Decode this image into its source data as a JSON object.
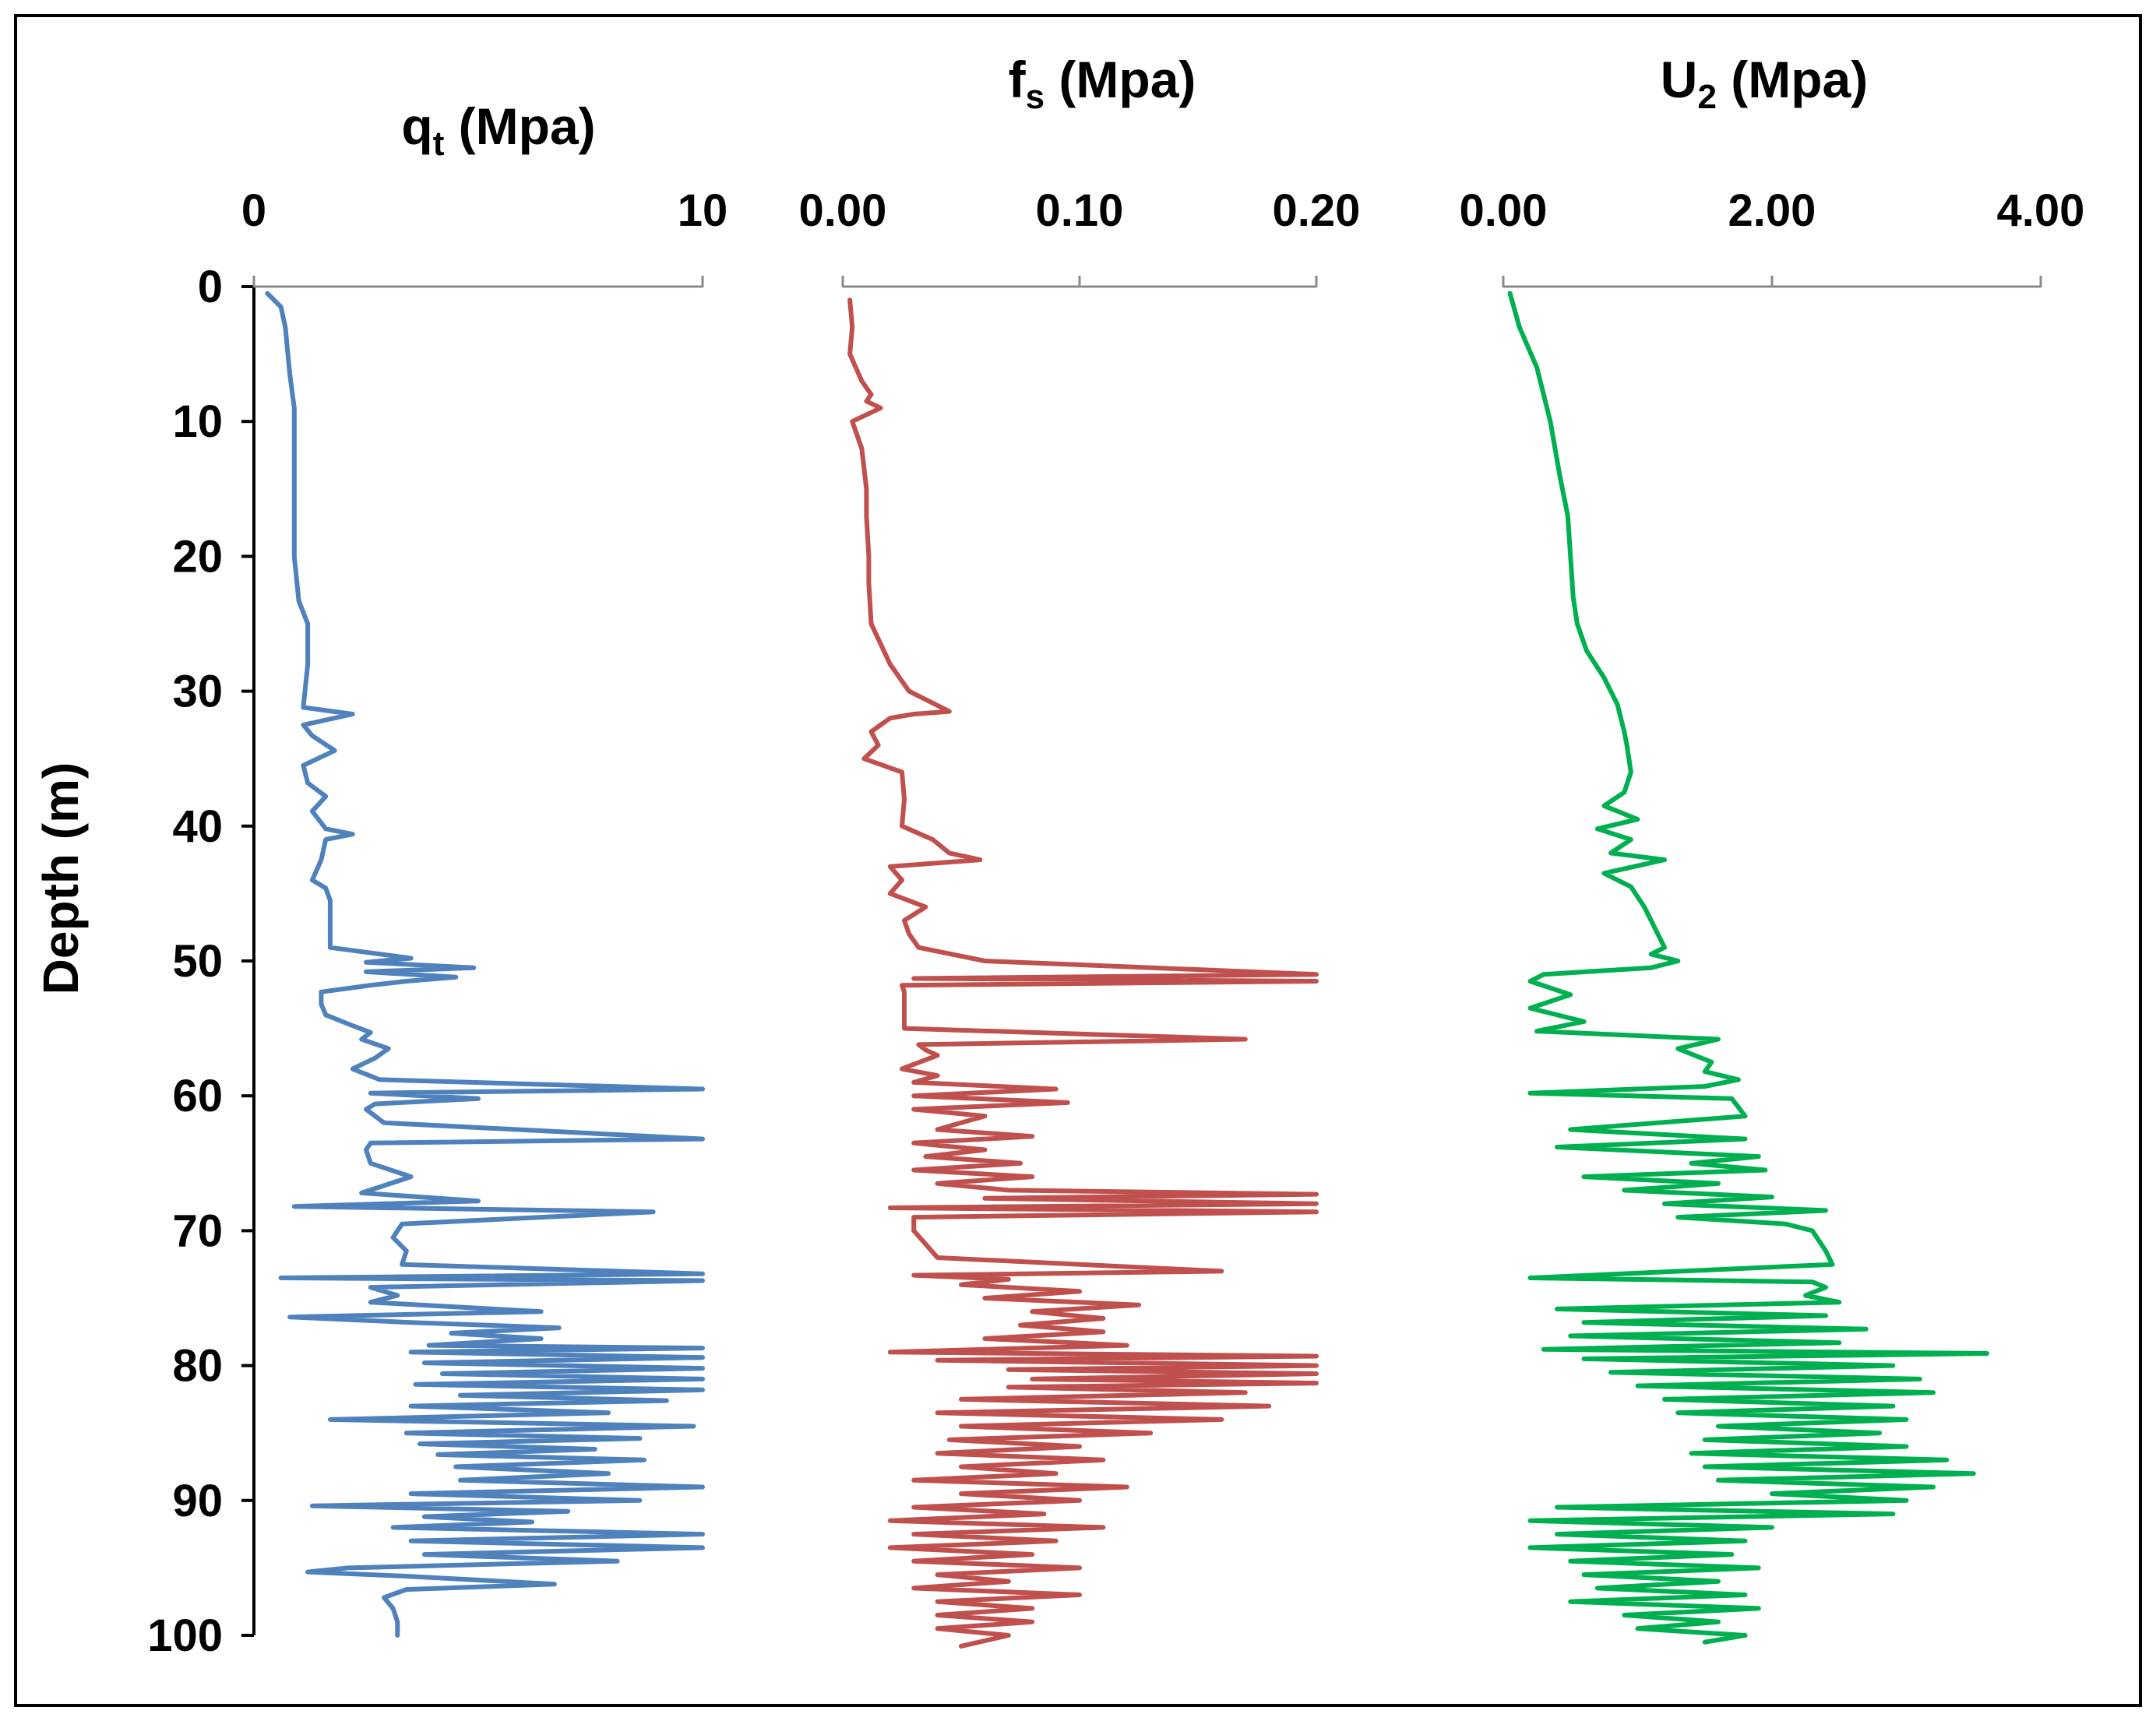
{
  "chart_data": {
    "type": "line",
    "ylabel": "Depth (m)",
    "ylim": [
      0,
      100
    ],
    "y_inverted": true,
    "y_ticks": [
      0,
      10,
      20,
      30,
      40,
      50,
      60,
      70,
      80,
      90,
      100
    ],
    "y_tick_labels": [
      "0",
      "10",
      "20",
      "30",
      "40",
      "50",
      "60",
      "70",
      "80",
      "90",
      "100"
    ],
    "panels": [
      {
        "id": "qt",
        "title_main": "q",
        "title_sub": "t",
        "title_unit": " (Mpa)",
        "color": "#4f81bd",
        "xlim": [
          0,
          10
        ],
        "x_ticks": [
          0,
          10
        ],
        "x_tick_labels": [
          "0",
          "10"
        ],
        "series": [
          {
            "name": "qt",
            "depth": [
              0.5,
              1.5,
              3,
              6.5,
              9,
              12,
              16,
              20,
              23.3,
              25,
              28,
              31.2,
              31.7,
              32.5,
              33.3,
              34.4,
              35.5,
              36.8,
              37.8,
              38.9,
              40.2,
              40.6,
              41,
              42.5,
              44,
              44.6,
              45.5,
              49,
              49.8,
              50.1,
              50.5,
              50.8,
              51.2,
              51.5,
              51.8,
              52.3,
              53.2,
              54,
              54.8,
              55.3,
              55.8,
              56.5,
              57.2,
              58,
              58.8,
              59.5,
              59.8,
              60.2,
              60.6,
              61,
              62,
              63.2,
              63.5,
              64,
              65,
              66,
              67.2,
              67.8,
              68.2,
              68.6,
              69.5,
              70.5,
              71.5,
              72.5,
              73.2,
              73.5,
              73.7,
              74.2,
              74.8,
              75.3,
              76,
              76.4,
              76.8,
              77.2,
              77.6,
              78,
              78.5,
              78.7,
              79,
              79.4,
              79.8,
              80.2,
              80.6,
              81,
              81.4,
              81.8,
              82.2,
              82.6,
              83,
              83.5,
              84,
              84.5,
              85,
              85.4,
              85.8,
              86.2,
              86.6,
              87,
              87.5,
              88,
              88.5,
              89,
              89.5,
              90,
              90.4,
              90.8,
              91.2,
              91.6,
              92,
              92.5,
              93,
              93.5,
              94,
              94.5,
              95,
              95.3,
              95.6,
              96.2,
              96.6,
              97.2,
              98,
              99,
              100
            ],
            "values": [
              0.3,
              0.6,
              0.7,
              0.8,
              0.9,
              0.9,
              0.9,
              0.9,
              1.0,
              1.2,
              1.2,
              1.1,
              2.2,
              1.1,
              1.3,
              1.8,
              1.1,
              1.2,
              1.6,
              1.3,
              1.6,
              2.2,
              1.6,
              1.5,
              1.3,
              1.6,
              1.7,
              1.7,
              3.5,
              2.5,
              4.9,
              2.5,
              4.5,
              3.4,
              2.6,
              1.5,
              1.5,
              1.6,
              2.2,
              2.6,
              2.4,
              3.0,
              2.7,
              2.2,
              2.8,
              10,
              2.6,
              5.0,
              2.7,
              2.5,
              2.9,
              10,
              2.6,
              2.5,
              2.6,
              3.5,
              2.4,
              5.0,
              0.9,
              8.9,
              3.3,
              3.1,
              3.4,
              3.3,
              10,
              0.6,
              10,
              2.6,
              3.2,
              2.6,
              6.4,
              0.8,
              3.5,
              6.8,
              4.4,
              6.4,
              3.9,
              10,
              3.5,
              10,
              3.8,
              10,
              4.2,
              10,
              3.6,
              10,
              4.6,
              9.2,
              3.5,
              7.9,
              1.7,
              9.8,
              3.4,
              8.6,
              3.7,
              7.6,
              4.1,
              8.7,
              4.5,
              7.9,
              4.6,
              10,
              3.5,
              8.6,
              1.3,
              7.0,
              3.8,
              6.2,
              3.1,
              10,
              3.5,
              10,
              3.8,
              8.1,
              2.1,
              1.2,
              3.3,
              6.7,
              3.4,
              2.9,
              3.1,
              3.2,
              3.2
            ]
          }
        ]
      },
      {
        "id": "fs",
        "title_main": "f",
        "title_sub": "s",
        "title_unit": " (Mpa)",
        "color": "#c0504d",
        "xlim": [
          0,
          0.2
        ],
        "x_ticks": [
          0,
          0.1,
          0.2
        ],
        "x_tick_labels": [
          "0.00",
          "0.10",
          "0.20"
        ],
        "series": [
          {
            "name": "fs",
            "depth": [
              1,
              3,
              5,
              7,
              8,
              8.5,
              9,
              10,
              12,
              15,
              17,
              20,
              22,
              25,
              28,
              30,
              31.5,
              31.7,
              32,
              33,
              34,
              35,
              36,
              38,
              40,
              41,
              42,
              42.5,
              43,
              44,
              45,
              46,
              47,
              48,
              49,
              50,
              51,
              51.3,
              51.5,
              51.8,
              52.3,
              53,
              55,
              55.8,
              56.2,
              56.6,
              57,
              58,
              58.5,
              59,
              59.5,
              60,
              60.5,
              61,
              61.5,
              62,
              62.5,
              63,
              63.5,
              64,
              64.5,
              65,
              65.5,
              66,
              66.5,
              67,
              67.3,
              67.6,
              68,
              68.3,
              68.6,
              69,
              70,
              72,
              73,
              73.3,
              73.6,
              74,
              74.5,
              75,
              75.5,
              76,
              76.5,
              77,
              77.5,
              78,
              78.5,
              79,
              79.3,
              79.6,
              80,
              80.3,
              80.6,
              81,
              81.3,
              81.6,
              82,
              82.5,
              83,
              83.5,
              84,
              84.5,
              85,
              85.5,
              86,
              86.5,
              87,
              87.5,
              88,
              88.5,
              89,
              89.5,
              90,
              90.5,
              91,
              91.5,
              92,
              92.5,
              93,
              93.5,
              94,
              94.5,
              95,
              95.5,
              96,
              96.5,
              97,
              97.5,
              98,
              98.5,
              99,
              99.5,
              100,
              100.8
            ],
            "values": [
              0.003,
              0.004,
              0.003,
              0.008,
              0.012,
              0.01,
              0.016,
              0.004,
              0.008,
              0.01,
              0.01,
              0.011,
              0.011,
              0.012,
              0.02,
              0.028,
              0.045,
              0.03,
              0.02,
              0.012,
              0.015,
              0.009,
              0.025,
              0.026,
              0.025,
              0.038,
              0.045,
              0.058,
              0.02,
              0.025,
              0.02,
              0.035,
              0.026,
              0.028,
              0.032,
              0.06,
              0.2,
              0.03,
              0.2,
              0.025,
              0.026,
              0.026,
              0.026,
              0.17,
              0.032,
              0.035,
              0.04,
              0.025,
              0.04,
              0.03,
              0.09,
              0.03,
              0.095,
              0.03,
              0.06,
              0.05,
              0.04,
              0.08,
              0.03,
              0.06,
              0.035,
              0.075,
              0.03,
              0.08,
              0.04,
              0.07,
              0.2,
              0.06,
              0.2,
              0.02,
              0.2,
              0.03,
              0.03,
              0.04,
              0.16,
              0.03,
              0.07,
              0.05,
              0.1,
              0.06,
              0.125,
              0.08,
              0.11,
              0.075,
              0.11,
              0.06,
              0.12,
              0.02,
              0.2,
              0.04,
              0.2,
              0.07,
              0.2,
              0.08,
              0.2,
              0.07,
              0.17,
              0.05,
              0.18,
              0.04,
              0.16,
              0.05,
              0.13,
              0.045,
              0.1,
              0.04,
              0.11,
              0.05,
              0.09,
              0.03,
              0.12,
              0.05,
              0.1,
              0.03,
              0.085,
              0.02,
              0.11,
              0.03,
              0.09,
              0.02,
              0.08,
              0.03,
              0.1,
              0.04,
              0.07,
              0.03,
              0.1,
              0.04,
              0.08,
              0.04,
              0.08,
              0.04,
              0.07,
              0.05,
              0.06,
              0.05
            ]
          }
        ]
      },
      {
        "id": "u2",
        "title_main": "U",
        "title_sub": "2",
        "title_unit": " (Mpa)",
        "color": "#00b050",
        "xlim": [
          0,
          4
        ],
        "x_ticks": [
          0,
          2,
          4
        ],
        "x_tick_labels": [
          "0.00",
          "2.00",
          "4.00"
        ],
        "series": [
          {
            "name": "U2",
            "depth": [
              0.5,
              3,
              6,
              8,
              10,
              14,
              17,
              20,
              23,
              25,
              27,
              29,
              31,
              33,
              34,
              36,
              37.5,
              38.5,
              39.5,
              40.2,
              41,
              42,
              42.5,
              43.5,
              44.5,
              46,
              47,
              48,
              49,
              49.5,
              50,
              50.5,
              51,
              51.5,
              52.5,
              53.5,
              54.5,
              55.2,
              55.8,
              56.5,
              57.5,
              58.2,
              58.8,
              59.3,
              59.8,
              60.2,
              61.5,
              62.5,
              63.2,
              63.8,
              64.5,
              65,
              65.5,
              66,
              66.5,
              67,
              67.5,
              68,
              68.5,
              69,
              69.5,
              70,
              71.5,
              72.5,
              73.5,
              73.8,
              74.2,
              74.8,
              75.3,
              75.8,
              76.3,
              76.8,
              77.3,
              77.8,
              78.3,
              78.8,
              79.1,
              79.5,
              80,
              80.5,
              81,
              81.5,
              82,
              82.5,
              83,
              83.5,
              84,
              84.5,
              85,
              85.5,
              86,
              86.5,
              87,
              87.5,
              88,
              88.5,
              89,
              89.5,
              90,
              90.5,
              91,
              91.5,
              92,
              92.5,
              93,
              93.5,
              94,
              94.5,
              95,
              95.5,
              96,
              96.5,
              97,
              97.5,
              98,
              98.5,
              99,
              99.5,
              100,
              100.5
            ],
            "values": [
              0.05,
              0.12,
              0.25,
              0.3,
              0.35,
              0.42,
              0.48,
              0.5,
              0.52,
              0.55,
              0.62,
              0.75,
              0.85,
              0.9,
              0.92,
              0.95,
              0.9,
              0.75,
              1.0,
              0.7,
              0.95,
              0.8,
              1.2,
              0.75,
              0.95,
              1.05,
              1.1,
              1.15,
              1.2,
              1.1,
              1.3,
              1.1,
              0.3,
              0.2,
              0.5,
              0.2,
              0.6,
              0.25,
              1.6,
              1.3,
              1.55,
              1.5,
              1.75,
              1.5,
              0.2,
              1.7,
              1.8,
              0.5,
              1.8,
              0.4,
              1.9,
              1.4,
              1.95,
              0.6,
              1.6,
              0.9,
              2.0,
              1.2,
              2.4,
              1.3,
              2.1,
              2.3,
              2.4,
              2.45,
              0.2,
              2.3,
              2.4,
              2.25,
              2.5,
              0.4,
              2.4,
              0.6,
              2.7,
              0.5,
              2.5,
              0.3,
              3.6,
              0.6,
              2.9,
              0.8,
              3.1,
              1.0,
              3.2,
              1.2,
              2.9,
              1.3,
              3.0,
              1.6,
              2.8,
              1.5,
              3.0,
              1.4,
              3.3,
              1.5,
              3.5,
              1.6,
              3.2,
              2.0,
              3.0,
              0.4,
              2.9,
              0.2,
              2.0,
              0.4,
              1.8,
              0.2,
              1.7,
              0.5,
              1.9,
              0.6,
              1.6,
              0.7,
              1.8,
              0.5,
              1.9,
              0.9,
              1.6,
              1.0,
              1.8,
              1.5
            ]
          }
        ]
      }
    ]
  }
}
